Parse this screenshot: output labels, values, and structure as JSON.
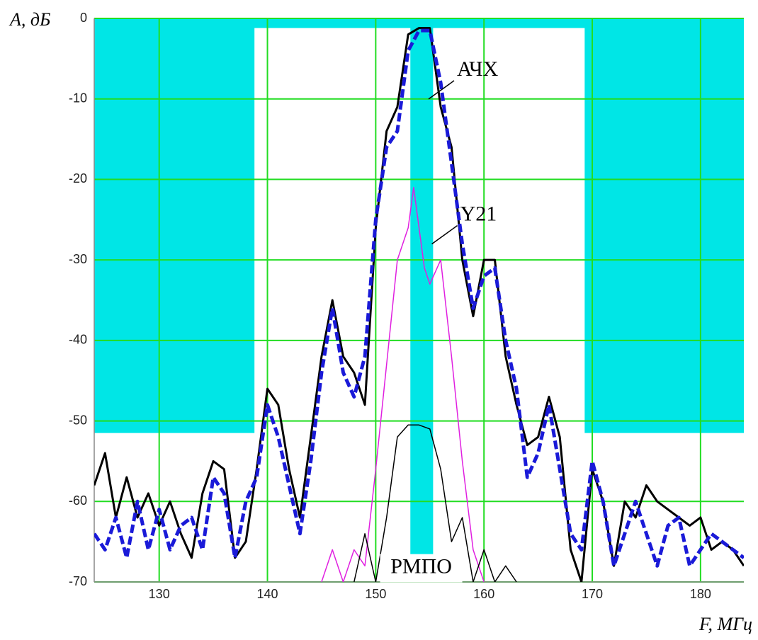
{
  "chart_data": {
    "type": "line",
    "y_label": "A, дБ",
    "x_label": "F, МГц",
    "xlim": [
      124,
      184
    ],
    "ylim": [
      -70,
      0
    ],
    "xticks": [
      130,
      140,
      150,
      160,
      170,
      180
    ],
    "yticks": [
      0,
      -10,
      -20,
      -30,
      -40,
      -50,
      -60,
      -70
    ],
    "grid": true,
    "grid_color": "#22dd22",
    "mask": {
      "color": "#00e6e6",
      "x": [
        124,
        184,
        184,
        169.3,
        169.3,
        155.3,
        155.3,
        153.2,
        153.2,
        138.8,
        138.8,
        124
      ],
      "y": [
        0,
        0,
        -51.5,
        -51.5,
        -1.2,
        -1.2,
        -67,
        -67,
        -1.2,
        -1.2,
        -51.5,
        -51.5
      ]
    },
    "series": [
      {
        "color": "#000000",
        "style": "solid",
        "x": [
          124,
          125,
          126,
          127,
          128,
          129,
          130,
          131,
          132,
          133,
          134,
          135,
          136,
          137,
          138,
          139,
          140,
          141,
          142,
          143,
          144,
          145,
          146,
          147,
          148,
          149,
          150,
          151,
          152,
          153,
          154,
          155,
          156,
          157,
          158,
          159,
          160,
          161,
          162,
          163,
          164,
          165,
          166,
          167,
          168,
          169,
          170,
          171,
          172,
          173,
          174,
          175,
          176,
          177,
          178,
          179,
          180,
          181,
          182,
          183,
          184
        ],
        "values": [
          -58,
          -54,
          -62,
          -57,
          -62,
          -59,
          -63,
          -60,
          -64,
          -67,
          -59,
          -55,
          -56,
          -67,
          -65,
          -56,
          -46,
          -48,
          -56,
          -62,
          -52,
          -42,
          -35,
          -42,
          -44,
          -48,
          -26,
          -14,
          -11,
          -2,
          -1.2,
          -1.2,
          -11,
          -16,
          -30,
          -37,
          -30,
          -30,
          -42,
          -48,
          -53,
          -52,
          -47,
          -52,
          -66,
          -70,
          -56,
          -60,
          -68,
          -60,
          -62,
          -58,
          -60,
          -61,
          -62,
          -63,
          -62,
          -66,
          -65,
          -66,
          -68
        ]
      },
      {
        "color": "#1a1ad8",
        "style": "dashed",
        "x": [
          124,
          125,
          126,
          127,
          128,
          129,
          130,
          131,
          132,
          133,
          134,
          135,
          136,
          137,
          138,
          139,
          140,
          141,
          142,
          143,
          144,
          145,
          146,
          147,
          148,
          149,
          150,
          151,
          152,
          153,
          154,
          155,
          156,
          157,
          158,
          159,
          160,
          161,
          162,
          163,
          164,
          165,
          166,
          167,
          168,
          169,
          170,
          171,
          172,
          173,
          174,
          175,
          176,
          177,
          178,
          179,
          180,
          181,
          182,
          183,
          184
        ],
        "values": [
          -64,
          -66,
          -62,
          -67,
          -60,
          -66,
          -61,
          -66,
          -63,
          -62,
          -66,
          -57,
          -59,
          -67,
          -60,
          -57,
          -48,
          -52,
          -58,
          -64,
          -55,
          -44,
          -36,
          -44,
          -47,
          -42,
          -25,
          -16,
          -14,
          -4,
          -1.5,
          -1.5,
          -8,
          -18,
          -28,
          -36,
          -32,
          -31,
          -40,
          -46,
          -57,
          -54,
          -48,
          -56,
          -64,
          -66,
          -55,
          -60,
          -68,
          -64,
          -60,
          -64,
          -68,
          -63,
          -62,
          -68,
          -66,
          -64,
          -65,
          -66,
          -67
        ]
      },
      {
        "color": "#e020e0",
        "style": "thin",
        "x": [
          145,
          146,
          147,
          148,
          149,
          150,
          151,
          152,
          153,
          153.5,
          154,
          154.5,
          155,
          156,
          157,
          158,
          159,
          160
        ],
        "values": [
          -70,
          -66,
          -70,
          -66,
          -68,
          -56,
          -43,
          -30,
          -26,
          -21,
          -26,
          -31,
          -33,
          -30,
          -42,
          -55,
          -66,
          -70
        ]
      },
      {
        "color": "#000000",
        "style": "thin",
        "x": [
          148,
          149,
          150,
          151,
          152,
          153,
          154,
          155,
          156,
          157,
          158,
          159,
          160,
          161,
          162,
          163
        ],
        "values": [
          -70,
          -64,
          -70,
          -62,
          -52,
          -50.5,
          -50.5,
          -51,
          -56,
          -65,
          -62,
          -70,
          -66,
          -70,
          -68,
          -70
        ]
      }
    ],
    "annotations": [
      {
        "text": "АЧХ",
        "x": 157.5,
        "y": -6.5
      },
      {
        "text": "Y21",
        "x": 157.8,
        "y": -24.5
      },
      {
        "text": "РМПО",
        "x": 154.2,
        "y": -68.3
      }
    ]
  }
}
